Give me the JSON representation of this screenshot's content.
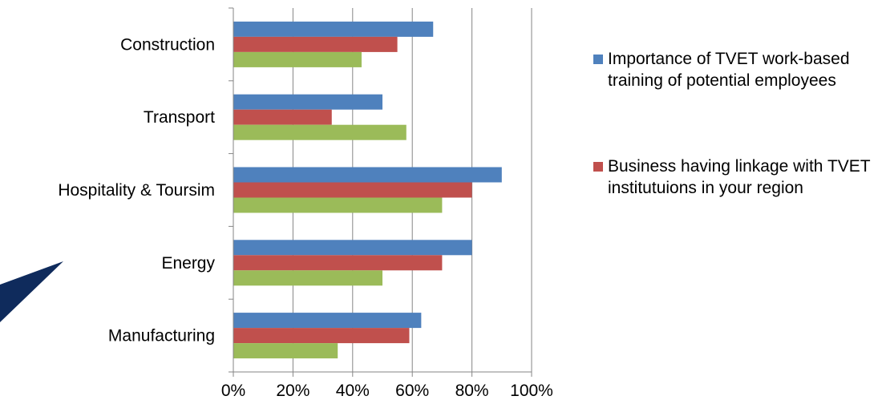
{
  "chart_data": {
    "type": "bar",
    "orientation": "horizontal",
    "categories": [
      "Construction",
      "Transport",
      "Hospitality & Toursim",
      "Energy",
      "Manufacturing"
    ],
    "series": [
      {
        "name": "Importance of TVET work-based training of potential employees",
        "color": "#4f81bd",
        "values": [
          67,
          50,
          90,
          80,
          63
        ]
      },
      {
        "name": "Business having linkage with TVET institutuions in your region",
        "color": "#c0504d",
        "values": [
          55,
          33,
          80,
          70,
          59
        ]
      },
      {
        "name": "",
        "color": "#9bbb59",
        "values": [
          43,
          58,
          70,
          50,
          35
        ]
      }
    ],
    "x_ticks": [
      "0%",
      "20%",
      "40%",
      "60%",
      "80%",
      "100%"
    ],
    "xlim": [
      0,
      100
    ],
    "grid": true,
    "legend_position": "right",
    "title": "",
    "xlabel": "",
    "ylabel": ""
  },
  "legend": {
    "items": [
      {
        "label": "Importance of TVET work-based training of potential employees",
        "color": "#4f81bd"
      },
      {
        "label": "Business having linkage with TVET institutuions in your region",
        "color": "#c0504d"
      }
    ]
  },
  "decoration": {
    "shape_color": "#0f2b5c"
  }
}
